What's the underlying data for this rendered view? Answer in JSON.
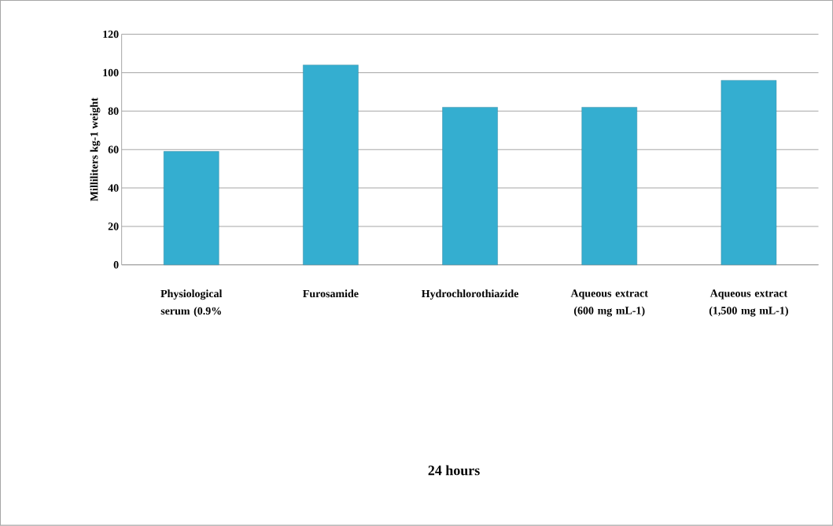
{
  "chart_data": {
    "type": "bar",
    "title": "24 hours",
    "ylabel": "Milliliters kg-1 weight",
    "categories": [
      "Physiological serum (0.9%",
      "Furosamide",
      "Hydrochlorothiazide",
      "Aqueous extract (600 mg mL-1)",
      "Aqueous extract (1,500 mg mL-1)"
    ],
    "values": [
      59,
      104,
      82,
      82,
      96
    ],
    "color": "#34aed0",
    "ylim": [
      0,
      120
    ],
    "yticks": [
      0,
      20,
      40,
      60,
      80,
      100,
      120
    ],
    "grid": "y"
  }
}
